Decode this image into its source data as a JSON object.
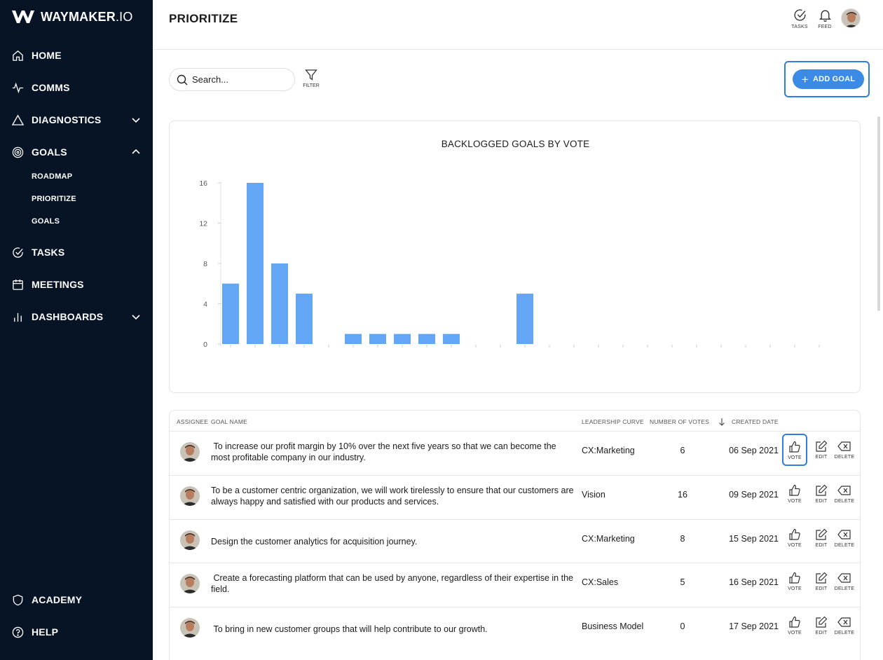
{
  "brand": {
    "name_bold": "WAYMAKER",
    "name_suffix": ".IO"
  },
  "sidebar": {
    "items": [
      {
        "label": "HOME",
        "icon": "home-icon"
      },
      {
        "label": "COMMS",
        "icon": "pulse-icon"
      },
      {
        "label": "DIAGNOSTICS",
        "icon": "triangle-icon"
      },
      {
        "label": "GOALS",
        "icon": "target-icon"
      },
      {
        "label": "TASKS",
        "icon": "check-circle-icon"
      },
      {
        "label": "MEETINGS",
        "icon": "calendar-icon"
      },
      {
        "label": "DASHBOARDS",
        "icon": "bar-chart-icon"
      },
      {
        "label": "ACADEMY",
        "icon": "shield-icon"
      },
      {
        "label": "HELP",
        "icon": "help-circle-icon"
      }
    ],
    "goals_sub": [
      "ROADMAP",
      "PRIORITIZE",
      "GOALS"
    ]
  },
  "header": {
    "title": "PRIORITIZE",
    "tasks_label": "TASKS",
    "feed_label": "FEED"
  },
  "toolbar": {
    "search_placeholder": "Search...",
    "filter_label": "FILTER",
    "add_goal_label": "ADD GOAL"
  },
  "chart_data": {
    "type": "bar",
    "title": "BACKLOGGED GOALS BY VOTE",
    "xlabel": "",
    "ylabel": "",
    "ylim": [
      0,
      16
    ],
    "yticks": [
      0,
      4,
      8,
      12,
      16
    ],
    "values": [
      6,
      16,
      8,
      5,
      0,
      1,
      1,
      1,
      1,
      1,
      0,
      0,
      5,
      0,
      0,
      0,
      0,
      0,
      0,
      0,
      0,
      0,
      0,
      0,
      0
    ],
    "color": "#63a6f5",
    "grid": false
  },
  "table": {
    "headers": {
      "assignee": "ASSIGNEE",
      "goal": "GOAL NAME",
      "curve": "LEADERSHIP CURVE",
      "votes": "NUMBER OF VOTES",
      "date": "CREATED DATE"
    },
    "actions": {
      "vote": "VOTE",
      "edit": "EDIT",
      "delete": "DELETE"
    },
    "rows": [
      {
        "goal": " To increase our profit margin by 10% over the next five years so that we can become the most profitable company in our industry.",
        "curve": "CX:Marketing",
        "votes": "6",
        "date": "06 Sep 2021"
      },
      {
        "goal": "To be a customer centric organization, we will work tirelessly to ensure that our customers are always happy and satisfied with our products and services.",
        "curve": "Vision",
        "votes": "16",
        "date": "09 Sep 2021"
      },
      {
        "goal": "Design the customer analytics for acquisition journey.",
        "curve": "CX:Marketing",
        "votes": "8",
        "date": "15 Sep 2021"
      },
      {
        "goal": " Create a forecasting platform that can be used by anyone, regardless of their expertise in the field.",
        "curve": "CX:Sales",
        "votes": "5",
        "date": "16 Sep 2021"
      },
      {
        "goal": " To bring in new customer groups that will help contribute to our growth.",
        "curve": "Business Model",
        "votes": "0",
        "date": "17 Sep 2021"
      }
    ]
  }
}
